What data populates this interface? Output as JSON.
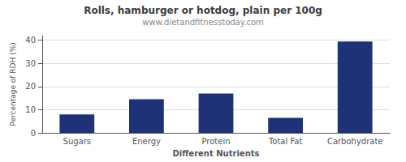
{
  "chart_data": {
    "type": "bar",
    "title": "Rolls, hamburger or hotdog, plain per 100g",
    "subtitle": "www.dietandfitnesstoday.com",
    "xlabel": "Different Nutrients",
    "ylabel": "Percentage of RDH (%)",
    "categories": [
      "Sugars",
      "Energy",
      "Protein",
      "Total Fat",
      "Carbohydrate"
    ],
    "values": [
      8.0,
      14.5,
      17.0,
      6.5,
      39.5
    ],
    "color": "#1f3278",
    "ylim": [
      0,
      42
    ],
    "yticks": [
      0,
      10,
      20,
      30,
      40
    ],
    "grid": true
  }
}
